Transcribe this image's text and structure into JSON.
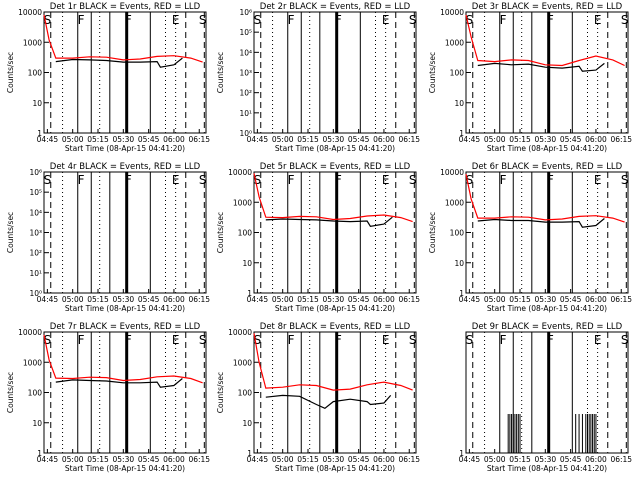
{
  "figure": {
    "colors": {
      "events": "#000000",
      "lld": "#ff0000",
      "background": "#ffffff"
    }
  },
  "chart_data": [
    {
      "type": "line",
      "title": "Det 1r BLACK = Events, RED = LLD",
      "xlabel": "Start Time (08-Apr-15 04:41:20)",
      "ylabel": "Counts/sec",
      "y_scale": "log",
      "ylim": [
        1,
        10000
      ],
      "x_ticks": [
        "04:45",
        "05:00",
        "05:15",
        "05:30",
        "05:45",
        "06:00",
        "06:15"
      ],
      "y_ticks": [
        "1",
        "10",
        "100",
        "1000",
        "10000"
      ],
      "flags": [
        "S",
        "F",
        "F",
        "E",
        "S"
      ],
      "flag_times": [
        "04:45",
        "05:05",
        "05:33",
        "06:01",
        "06:17"
      ],
      "series": [
        {
          "name": "Events",
          "color": "#000000",
          "x": [
            "04:50",
            "05:00",
            "05:10",
            "05:20",
            "05:30",
            "05:40",
            "05:50",
            "05:52",
            "06:00",
            "06:05"
          ],
          "values": [
            230,
            270,
            260,
            250,
            220,
            220,
            230,
            150,
            180,
            300
          ]
        },
        {
          "name": "LLD",
          "color": "#ff0000",
          "x": [
            "04:43",
            "04:46",
            "04:50",
            "05:00",
            "05:10",
            "05:20",
            "05:30",
            "05:40",
            "05:50",
            "06:00",
            "06:10",
            "06:17"
          ],
          "values": [
            8000,
            1200,
            300,
            300,
            330,
            320,
            260,
            280,
            340,
            360,
            300,
            220
          ]
        }
      ]
    },
    {
      "type": "line",
      "title": "Det 2r BLACK = Events, RED = LLD",
      "xlabel": "Start Time (08-Apr-15 04:41:20)",
      "ylabel": "Counts/sec",
      "y_scale": "log",
      "ylim": [
        1,
        1000000
      ],
      "x_ticks": [
        "04:45",
        "05:00",
        "05:15",
        "05:30",
        "05:45",
        "06:00",
        "06:15"
      ],
      "y_ticks": [
        "10⁰",
        "10¹",
        "10²",
        "10³",
        "10⁴",
        "10⁵",
        "10⁶"
      ],
      "flags": [
        "S",
        "F",
        "F",
        "E",
        "S"
      ],
      "flag_times": [
        "04:45",
        "05:05",
        "05:33",
        "06:01",
        "06:17"
      ],
      "series": []
    },
    {
      "type": "line",
      "title": "Det 3r BLACK = Events, RED = LLD",
      "xlabel": "Start Time (08-Apr-15 04:41:20)",
      "ylabel": "Counts/sec",
      "y_scale": "log",
      "ylim": [
        1,
        10000
      ],
      "x_ticks": [
        "04:45",
        "05:00",
        "05:15",
        "05:30",
        "05:45",
        "06:00",
        "06:15"
      ],
      "y_ticks": [
        "1",
        "10",
        "100",
        "1000",
        "10000"
      ],
      "flags": [
        "S",
        "F",
        "F",
        "E",
        "S"
      ],
      "flag_times": [
        "04:45",
        "05:05",
        "05:33",
        "06:01",
        "06:17"
      ],
      "series": [
        {
          "name": "Events",
          "color": "#000000",
          "x": [
            "04:50",
            "05:00",
            "05:10",
            "05:20",
            "05:30",
            "05:40",
            "05:50",
            "05:52",
            "06:00",
            "06:05"
          ],
          "values": [
            170,
            200,
            180,
            190,
            150,
            140,
            160,
            110,
            120,
            200
          ]
        },
        {
          "name": "LLD",
          "color": "#ff0000",
          "x": [
            "04:43",
            "04:46",
            "04:50",
            "05:00",
            "05:10",
            "05:20",
            "05:30",
            "05:40",
            "05:50",
            "06:00",
            "06:10",
            "06:17"
          ],
          "values": [
            8000,
            1500,
            250,
            230,
            260,
            250,
            180,
            170,
            250,
            350,
            260,
            170
          ]
        }
      ]
    },
    {
      "type": "line",
      "title": "Det 4r BLACK = Events, RED = LLD",
      "xlabel": "Start Time (08-Apr-15 04:41:20)",
      "ylabel": "Counts/sec",
      "y_scale": "log",
      "ylim": [
        1,
        1000000
      ],
      "x_ticks": [
        "04:45",
        "05:00",
        "05:15",
        "05:30",
        "05:45",
        "06:00",
        "06:15"
      ],
      "y_ticks": [
        "10⁰",
        "10¹",
        "10²",
        "10³",
        "10⁴",
        "10⁵",
        "10⁶"
      ],
      "flags": [
        "S",
        "F",
        "F",
        "E",
        "S"
      ],
      "flag_times": [
        "04:45",
        "05:05",
        "05:33",
        "06:01",
        "06:17"
      ],
      "series": []
    },
    {
      "type": "line",
      "title": "Det 5r BLACK = Events, RED = LLD",
      "xlabel": "Start Time (08-Apr-15 04:41:20)",
      "ylabel": "Counts/sec",
      "y_scale": "log",
      "ylim": [
        1,
        10000
      ],
      "x_ticks": [
        "04:45",
        "05:00",
        "05:15",
        "05:30",
        "05:45",
        "06:00",
        "06:15"
      ],
      "y_ticks": [
        "1",
        "10",
        "100",
        "1000",
        "10000"
      ],
      "flags": [
        "S",
        "F",
        "F",
        "E",
        "S"
      ],
      "flag_times": [
        "04:45",
        "05:05",
        "05:33",
        "06:01",
        "06:17"
      ],
      "series": [
        {
          "name": "Events",
          "color": "#000000",
          "x": [
            "04:50",
            "05:00",
            "05:10",
            "05:20",
            "05:30",
            "05:40",
            "05:50",
            "05:52",
            "06:00",
            "06:05"
          ],
          "values": [
            260,
            280,
            270,
            260,
            240,
            230,
            240,
            160,
            190,
            320
          ]
        },
        {
          "name": "LLD",
          "color": "#ff0000",
          "x": [
            "04:43",
            "04:46",
            "04:50",
            "05:00",
            "05:10",
            "05:20",
            "05:30",
            "05:40",
            "05:50",
            "06:00",
            "06:10",
            "06:17"
          ],
          "values": [
            9000,
            1500,
            320,
            310,
            340,
            330,
            270,
            290,
            350,
            380,
            310,
            230
          ]
        }
      ]
    },
    {
      "type": "line",
      "title": "Det 6r BLACK = Events, RED = LLD",
      "xlabel": "Start Time (08-Apr-15 04:41:20)",
      "ylabel": "Counts/sec",
      "y_scale": "log",
      "ylim": [
        1,
        10000
      ],
      "x_ticks": [
        "04:45",
        "05:00",
        "05:15",
        "05:30",
        "05:45",
        "06:00",
        "06:15"
      ],
      "y_ticks": [
        "1",
        "10",
        "100",
        "1000",
        "10000"
      ],
      "flags": [
        "S",
        "F",
        "F",
        "E",
        "S"
      ],
      "flag_times": [
        "04:45",
        "05:05",
        "05:33",
        "06:01",
        "06:17"
      ],
      "series": [
        {
          "name": "Events",
          "color": "#000000",
          "x": [
            "04:50",
            "05:00",
            "05:10",
            "05:20",
            "05:30",
            "05:40",
            "05:50",
            "05:52",
            "06:00",
            "06:05"
          ],
          "values": [
            240,
            270,
            250,
            250,
            220,
            220,
            230,
            150,
            170,
            290
          ]
        },
        {
          "name": "LLD",
          "color": "#ff0000",
          "x": [
            "04:43",
            "04:46",
            "04:50",
            "05:00",
            "05:10",
            "05:20",
            "05:30",
            "05:40",
            "05:50",
            "06:00",
            "06:10",
            "06:17"
          ],
          "values": [
            8500,
            1300,
            300,
            300,
            330,
            320,
            260,
            280,
            340,
            360,
            300,
            220
          ]
        }
      ]
    },
    {
      "type": "line",
      "title": "Det 7r BLACK = Events, RED = LLD",
      "xlabel": "Start Time (08-Apr-15 04:41:20)",
      "ylabel": "Counts/sec",
      "y_scale": "log",
      "ylim": [
        1,
        10000
      ],
      "x_ticks": [
        "04:45",
        "05:00",
        "05:15",
        "05:30",
        "05:45",
        "06:00",
        "06:15"
      ],
      "y_ticks": [
        "1",
        "10",
        "100",
        "1000",
        "10000"
      ],
      "flags": [
        "S",
        "F",
        "F",
        "E",
        "S"
      ],
      "flag_times": [
        "04:45",
        "05:05",
        "05:33",
        "06:01",
        "06:17"
      ],
      "series": [
        {
          "name": "Events",
          "color": "#000000",
          "x": [
            "04:50",
            "05:00",
            "05:10",
            "05:20",
            "05:30",
            "05:40",
            "05:50",
            "05:52",
            "06:00",
            "06:05"
          ],
          "values": [
            220,
            260,
            250,
            240,
            210,
            210,
            220,
            150,
            170,
            290
          ]
        },
        {
          "name": "LLD",
          "color": "#ff0000",
          "x": [
            "04:43",
            "04:46",
            "04:50",
            "05:00",
            "05:10",
            "05:20",
            "05:30",
            "05:40",
            "05:50",
            "06:00",
            "06:10",
            "06:17"
          ],
          "values": [
            8000,
            1200,
            300,
            290,
            320,
            310,
            250,
            270,
            330,
            350,
            290,
            210
          ]
        }
      ]
    },
    {
      "type": "line",
      "title": "Det 8r BLACK = Events, RED = LLD",
      "xlabel": "Start Time (08-Apr-15 04:41:20)",
      "ylabel": "Counts/sec",
      "y_scale": "log",
      "ylim": [
        1,
        10000
      ],
      "x_ticks": [
        "04:45",
        "05:00",
        "05:15",
        "05:30",
        "05:45",
        "06:00",
        "06:15"
      ],
      "y_ticks": [
        "1",
        "10",
        "100",
        "1000",
        "10000"
      ],
      "flags": [
        "S",
        "F",
        "F",
        "E",
        "S"
      ],
      "flag_times": [
        "04:45",
        "05:05",
        "05:33",
        "06:01",
        "06:17"
      ],
      "series": [
        {
          "name": "Events",
          "color": "#000000",
          "x": [
            "04:50",
            "05:00",
            "05:10",
            "05:20",
            "05:25",
            "05:30",
            "05:40",
            "05:50",
            "05:52",
            "06:00",
            "06:04"
          ],
          "values": [
            70,
            80,
            75,
            40,
            30,
            50,
            60,
            50,
            40,
            45,
            80
          ]
        },
        {
          "name": "LLD",
          "color": "#ff0000",
          "x": [
            "04:43",
            "04:46",
            "04:50",
            "05:00",
            "05:10",
            "05:20",
            "05:30",
            "05:40",
            "05:50",
            "06:00",
            "06:10",
            "06:17"
          ],
          "values": [
            9000,
            1000,
            140,
            150,
            180,
            170,
            120,
            130,
            180,
            220,
            170,
            120
          ]
        }
      ]
    },
    {
      "type": "line",
      "title": "Det 9r BLACK = Events, RED = LLD",
      "xlabel": "Start Time (08-Apr-15 04:41:20)",
      "ylabel": "",
      "y_scale": "linear",
      "ylim": [
        1,
        4
      ],
      "x_ticks": [
        "04:45",
        "05:00",
        "05:15",
        "05:30",
        "05:45",
        "06:00",
        "06:15"
      ],
      "y_ticks": [
        "1"
      ],
      "flags": [
        "S",
        "F",
        "F",
        "E",
        "S"
      ],
      "flag_times": [
        "04:45",
        "05:05",
        "05:33",
        "06:01",
        "06:17"
      ],
      "series": [
        {
          "name": "Events",
          "color": "#000000",
          "x": [],
          "values": []
        }
      ]
    }
  ]
}
